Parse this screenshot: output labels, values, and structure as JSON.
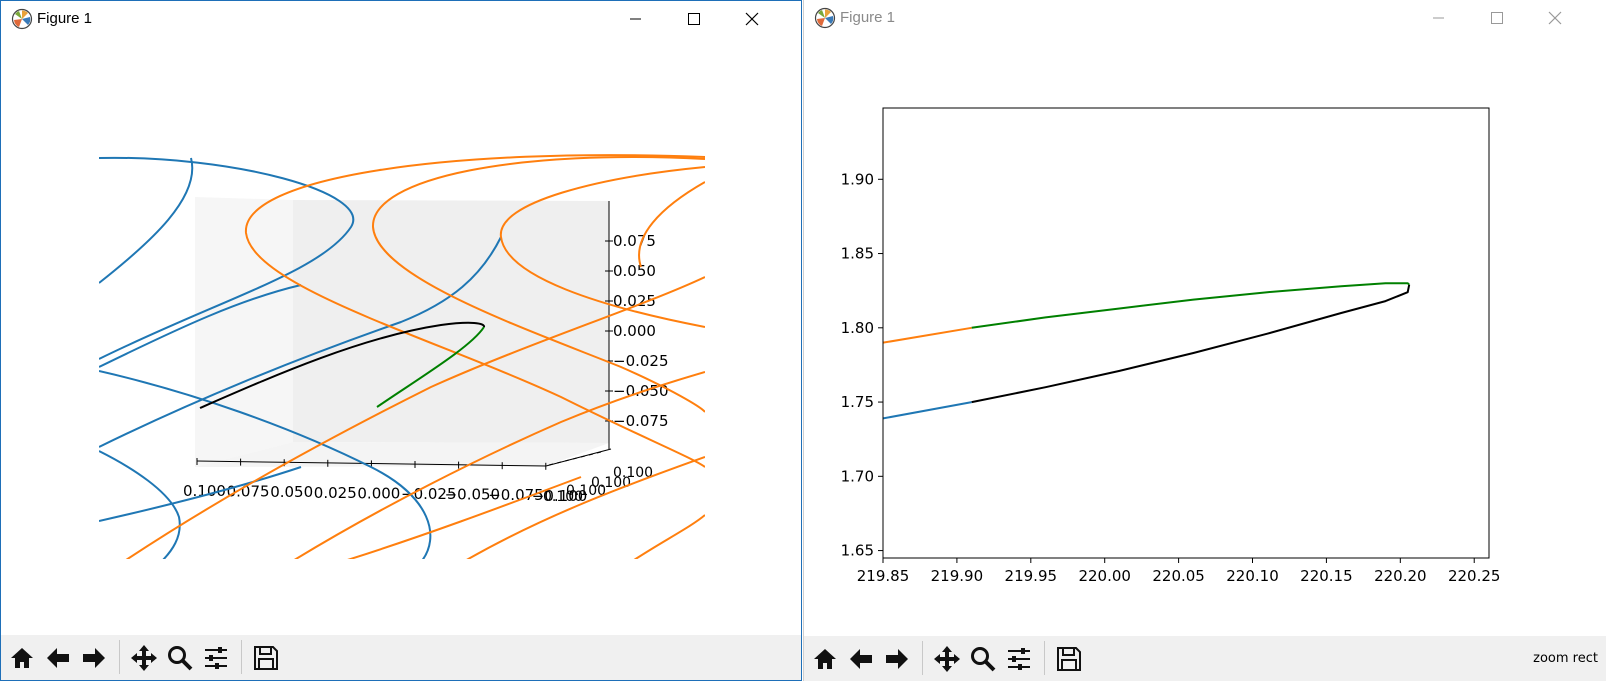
{
  "window_left": {
    "title": "Figure 1",
    "axes3d": {
      "x_ticks": [
        "0.100",
        "0.075",
        "0.050",
        "0.025",
        "0.000",
        "0.025",
        "0.050",
        "0.075",
        "0.100"
      ],
      "z_ticks": [
        "0.075",
        "0.050",
        "0.025",
        "0.000",
        "0.025",
        "0.050",
        "0.075"
      ],
      "y_ticks_fragment": "0.100",
      "y_ticks_clutter": "0.100"
    }
  },
  "window_right": {
    "title": "Figure 1",
    "status": "zoom rect",
    "chart_data": {
      "type": "line",
      "title": "",
      "xlabel": "",
      "ylabel": "",
      "xlim": [
        219.85,
        220.26
      ],
      "ylim": [
        1.645,
        1.948
      ],
      "x_ticks": [
        "219.85",
        "219.90",
        "219.95",
        "220.00",
        "220.05",
        "220.10",
        "220.15",
        "220.20",
        "220.25"
      ],
      "y_ticks": [
        "1.65",
        "1.70",
        "1.75",
        "1.80",
        "1.85",
        "1.90"
      ],
      "grid": false,
      "series": [
        {
          "color": "#1f77b4",
          "x": [
            219.85,
            219.91
          ],
          "y": [
            1.739,
            1.75
          ]
        },
        {
          "color": "#000000",
          "x": [
            219.91,
            219.96,
            220.01,
            220.06,
            220.11,
            220.16,
            220.19,
            220.205,
            220.206
          ],
          "y": [
            1.75,
            1.76,
            1.771,
            1.783,
            1.796,
            1.81,
            1.818,
            1.824,
            1.829
          ]
        },
        {
          "color": "#ff7f0e",
          "x": [
            219.85,
            219.91
          ],
          "y": [
            1.79,
            1.8
          ]
        },
        {
          "color": "#008000",
          "x": [
            219.91,
            219.96,
            220.01,
            220.06,
            220.11,
            220.16,
            220.19,
            220.205,
            220.206
          ],
          "y": [
            1.8,
            1.807,
            1.813,
            1.819,
            1.824,
            1.828,
            1.83,
            1.83,
            1.829
          ]
        }
      ]
    }
  },
  "toolbar": {
    "buttons": [
      {
        "name": "home-button",
        "icon": "home-icon"
      },
      {
        "name": "back-button",
        "icon": "arrow-left-icon"
      },
      {
        "name": "forward-button",
        "icon": "arrow-right-icon"
      },
      {
        "name": "pan-button",
        "icon": "move-icon"
      },
      {
        "name": "zoom-button",
        "icon": "magnifier-icon"
      },
      {
        "name": "subplots-button",
        "icon": "sliders-icon"
      },
      {
        "name": "save-button",
        "icon": "floppy-icon"
      }
    ]
  },
  "colors": {
    "blue": "#1f77b4",
    "orange": "#ff7f0e",
    "green": "#008000",
    "black": "#000000",
    "pane": "#f2f2f2",
    "toolbar": "#f0f0f0"
  }
}
